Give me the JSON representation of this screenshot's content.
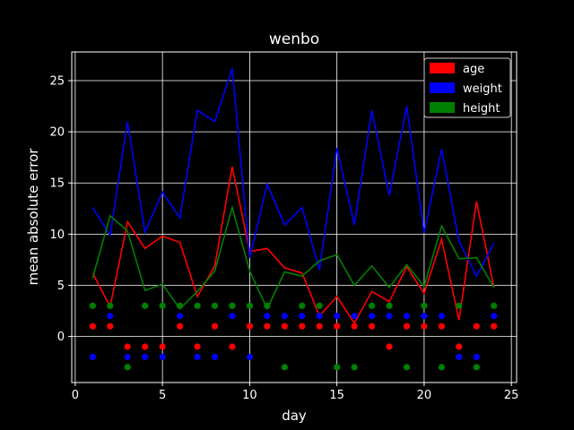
{
  "chart_data": {
    "type": "line",
    "title": "wenbo",
    "xlabel": "day",
    "ylabel": "mean absolute error",
    "xlim": [
      -0.2,
      25.3
    ],
    "ylim": [
      -4.5,
      27.8
    ],
    "xticks": [
      0,
      5,
      10,
      15,
      20,
      25
    ],
    "yticks": [
      0,
      5,
      10,
      15,
      20,
      25
    ],
    "grid": true,
    "legend_position": "top-right",
    "x": [
      1,
      2,
      3,
      4,
      5,
      6,
      7,
      8,
      9,
      10,
      11,
      12,
      13,
      14,
      15,
      16,
      17,
      18,
      19,
      20,
      21,
      22,
      23,
      24
    ],
    "series": [
      {
        "name": "age",
        "color": "#ff0000",
        "values": [
          6.2,
          2.9,
          11.2,
          8.6,
          9.8,
          9.2,
          3.9,
          6.9,
          16.6,
          8.3,
          8.6,
          6.7,
          6.2,
          2.0,
          3.9,
          1.3,
          4.4,
          3.4,
          6.8,
          4.2,
          9.5,
          1.6,
          13.2,
          4.8
        ],
        "scatter": [
          1,
          1,
          -1,
          -1,
          -1,
          1,
          -1,
          1,
          -1,
          1,
          1,
          1,
          1,
          1,
          1,
          1,
          1,
          -1,
          1,
          1,
          1,
          -1,
          1,
          1
        ]
      },
      {
        "name": "weight",
        "color": "#0000ff",
        "values": [
          12.6,
          9.9,
          21.0,
          10.2,
          14.1,
          11.6,
          22.1,
          21.0,
          26.2,
          7.7,
          14.9,
          10.9,
          12.6,
          6.5,
          18.4,
          10.9,
          22.1,
          13.8,
          22.5,
          10.1,
          18.3,
          9.3,
          5.9,
          9.1
        ],
        "scatter": [
          -2,
          2,
          -2,
          -2,
          -2,
          2,
          -2,
          -2,
          2,
          -2,
          2,
          2,
          2,
          2,
          2,
          2,
          2,
          2,
          2,
          2,
          2,
          -2,
          -2,
          2
        ]
      },
      {
        "name": "height",
        "color": "#008000",
        "values": [
          5.7,
          11.8,
          10.3,
          4.5,
          5.1,
          2.7,
          4.4,
          6.4,
          12.6,
          6.4,
          2.7,
          6.3,
          5.9,
          7.4,
          8.0,
          5.0,
          6.9,
          4.8,
          7.0,
          4.9,
          10.8,
          7.6,
          7.7,
          4.8
        ],
        "scatter": [
          3,
          3,
          -3,
          3,
          3,
          3,
          3,
          3,
          3,
          3,
          3,
          -3,
          3,
          3,
          -3,
          -3,
          3,
          3,
          -3,
          3,
          -3,
          3,
          -3,
          3
        ]
      }
    ]
  }
}
